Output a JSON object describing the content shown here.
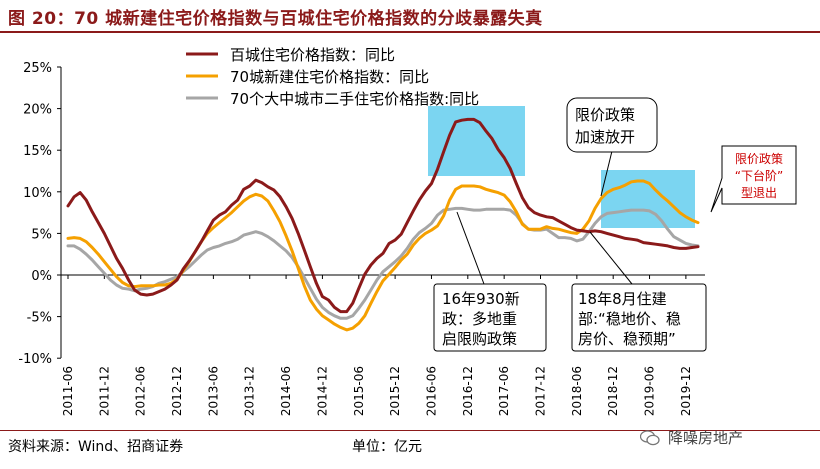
{
  "header": {
    "title": "图 20：70 城新建住宅价格指数与百城住宅价格指数的分歧暴露失真"
  },
  "footer": {
    "source": "资料来源：Wind、招商证券",
    "unit": "单位：亿元",
    "brand": "降噪房地产"
  },
  "colors": {
    "accent": "#8b1a1a",
    "series_100city": "#8b1a1a",
    "series_70new": "#f5a000",
    "series_70second": "#a6a6a6",
    "highlight": "#6dd0f0",
    "callout_red": "#cc0000"
  },
  "annotations": {
    "box1_line1": "16年930新",
    "box1_line2": "政：多地重",
    "box1_line3": "启限购政策",
    "box2_line1": "18年8月住建",
    "box2_line2": "部:“稳地价、稳",
    "box2_line3": "房价、稳预期”",
    "box3_line1": "限价政策",
    "box3_line2": "加速放开",
    "box4_line1": "限价政策",
    "box4_line2": "“下台阶”",
    "box4_line3": "型退出"
  },
  "chart_data": {
    "type": "line",
    "title": "",
    "xlabel": "",
    "ylabel": "",
    "ylim": [
      -10,
      25
    ],
    "yticks": [
      "25%",
      "20%",
      "15%",
      "10%",
      "5%",
      "0%",
      "-5%",
      "-10%"
    ],
    "xticks": [
      "2011-06",
      "2011-12",
      "2012-06",
      "2012-12",
      "2013-06",
      "2013-12",
      "2014-06",
      "2014-12",
      "2015-06",
      "2015-12",
      "2016-06",
      "2016-12",
      "2017-06",
      "2017-12",
      "2018-06",
      "2018-12",
      "2019-06",
      "2019-12"
    ],
    "legend_position": "top-center",
    "grid": false,
    "x": [
      "2011-06",
      "2011-07",
      "2011-08",
      "2011-09",
      "2011-10",
      "2011-11",
      "2011-12",
      "2012-01",
      "2012-02",
      "2012-03",
      "2012-04",
      "2012-05",
      "2012-06",
      "2012-07",
      "2012-08",
      "2012-09",
      "2012-10",
      "2012-11",
      "2012-12",
      "2013-01",
      "2013-02",
      "2013-03",
      "2013-04",
      "2013-05",
      "2013-06",
      "2013-07",
      "2013-08",
      "2013-09",
      "2013-10",
      "2013-11",
      "2013-12",
      "2014-01",
      "2014-02",
      "2014-03",
      "2014-04",
      "2014-05",
      "2014-06",
      "2014-07",
      "2014-08",
      "2014-09",
      "2014-10",
      "2014-11",
      "2014-12",
      "2015-01",
      "2015-02",
      "2015-03",
      "2015-04",
      "2015-05",
      "2015-06",
      "2015-07",
      "2015-08",
      "2015-09",
      "2015-10",
      "2015-11",
      "2015-12",
      "2016-01",
      "2016-02",
      "2016-03",
      "2016-04",
      "2016-05",
      "2016-06",
      "2016-07",
      "2016-08",
      "2016-09",
      "2016-10",
      "2016-11",
      "2016-12",
      "2017-01",
      "2017-02",
      "2017-03",
      "2017-04",
      "2017-05",
      "2017-06",
      "2017-07",
      "2017-08",
      "2017-09",
      "2017-10",
      "2017-11",
      "2017-12",
      "2018-01",
      "2018-02",
      "2018-03",
      "2018-04",
      "2018-05",
      "2018-06",
      "2018-07",
      "2018-08",
      "2018-09",
      "2018-10",
      "2018-11",
      "2018-12",
      "2019-01",
      "2019-02",
      "2019-03",
      "2019-04",
      "2019-05",
      "2019-06",
      "2019-07",
      "2019-08",
      "2019-09",
      "2019-10",
      "2019-11",
      "2019-12",
      "2020-01",
      "2020-02"
    ],
    "series": [
      {
        "name": "百城住宅价格指数：同比",
        "values": [
          8.3,
          9.4,
          9.9,
          9.0,
          7.6,
          6.3,
          5.0,
          3.5,
          2.0,
          0.8,
          -0.6,
          -1.8,
          -2.3,
          -2.4,
          -2.3,
          -2.0,
          -1.7,
          -1.2,
          -0.6,
          0.7,
          1.7,
          2.8,
          4.0,
          5.3,
          6.6,
          7.2,
          7.6,
          8.4,
          9.0,
          10.3,
          10.7,
          11.4,
          11.1,
          10.6,
          10.2,
          9.4,
          8.2,
          6.8,
          5.0,
          3.0,
          1.0,
          -1.0,
          -2.6,
          -3.0,
          -3.9,
          -4.4,
          -4.4,
          -3.4,
          -1.6,
          0.1,
          1.2,
          2.0,
          2.6,
          3.8,
          4.2,
          4.9,
          6.3,
          7.7,
          9.0,
          10.1,
          11.0,
          12.7,
          14.8,
          16.8,
          18.4,
          18.6,
          18.7,
          18.7,
          18.3,
          17.3,
          16.4,
          15.1,
          14.1,
          12.8,
          11.0,
          9.3,
          8.1,
          7.5,
          7.2,
          7.0,
          6.9,
          6.5,
          6.1,
          5.7,
          5.4,
          5.3,
          5.2,
          5.3,
          5.2,
          5.0,
          4.8,
          4.6,
          4.4,
          4.3,
          4.2,
          3.9,
          3.8,
          3.7,
          3.6,
          3.5,
          3.3,
          3.2,
          3.2,
          3.3,
          3.4
        ]
      },
      {
        "name": "70城新建住宅价格指数：同比",
        "values": [
          4.4,
          4.5,
          4.4,
          4.0,
          3.3,
          2.5,
          1.6,
          0.7,
          -0.2,
          -0.9,
          -1.3,
          -1.4,
          -1.3,
          -1.3,
          -1.3,
          -1.2,
          -1.2,
          -1.0,
          -0.5,
          0.5,
          1.6,
          2.8,
          4.0,
          5.0,
          5.7,
          6.3,
          6.9,
          7.5,
          8.2,
          8.9,
          9.4,
          9.7,
          9.5,
          8.9,
          7.7,
          6.4,
          4.7,
          2.9,
          0.8,
          -1.3,
          -3.0,
          -4.1,
          -4.9,
          -5.4,
          -5.9,
          -6.3,
          -6.6,
          -6.4,
          -5.8,
          -4.9,
          -3.4,
          -2.0,
          -0.7,
          0.1,
          0.9,
          1.8,
          2.5,
          3.6,
          4.4,
          5.0,
          5.4,
          5.9,
          7.1,
          9.0,
          10.3,
          10.7,
          10.7,
          10.7,
          10.6,
          10.3,
          10.1,
          9.9,
          9.6,
          8.8,
          7.6,
          6.1,
          5.5,
          5.5,
          5.5,
          5.8,
          5.6,
          5.5,
          5.3,
          5.1,
          5.0,
          5.5,
          6.5,
          8.0,
          9.2,
          9.9,
          10.3,
          10.5,
          10.8,
          11.2,
          11.3,
          11.3,
          11.0,
          10.2,
          9.5,
          8.9,
          8.2,
          7.5,
          7.0,
          6.6,
          6.3
        ]
      },
      {
        "name": "70个大中城市二手住宅价格指数:同比",
        "values": [
          3.5,
          3.5,
          3.1,
          2.5,
          1.8,
          1.0,
          0.2,
          -0.6,
          -1.2,
          -1.6,
          -1.7,
          -1.9,
          -1.7,
          -1.6,
          -1.4,
          -1.0,
          -0.8,
          -0.5,
          -0.2,
          0.4,
          1.0,
          1.7,
          2.4,
          3.0,
          3.3,
          3.5,
          3.8,
          4.0,
          4.3,
          4.8,
          5.0,
          5.2,
          5.0,
          4.6,
          4.1,
          3.5,
          2.9,
          2.1,
          1.0,
          -0.3,
          -1.6,
          -2.9,
          -3.9,
          -4.5,
          -4.9,
          -5.2,
          -5.2,
          -4.9,
          -4.0,
          -3.0,
          -1.8,
          -0.6,
          0.4,
          1.0,
          1.6,
          2.3,
          3.2,
          4.3,
          5.1,
          5.6,
          6.2,
          7.2,
          7.8,
          7.9,
          8.0,
          8.0,
          7.9,
          7.8,
          7.8,
          7.9,
          7.9,
          7.9,
          7.9,
          7.8,
          7.2,
          6.2,
          5.5,
          5.4,
          5.4,
          5.5,
          5.0,
          4.5,
          4.5,
          4.4,
          4.1,
          4.3,
          5.2,
          6.2,
          7.0,
          7.4,
          7.5,
          7.6,
          7.7,
          7.8,
          7.8,
          7.8,
          7.7,
          7.3,
          6.5,
          5.5,
          4.6,
          4.2,
          3.8,
          3.6,
          3.5
        ]
      }
    ]
  }
}
